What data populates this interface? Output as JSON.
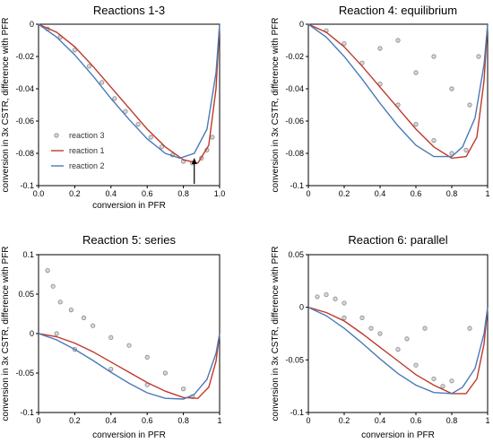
{
  "chart_data": [
    {
      "type": "scatter",
      "title": "Reactions 1-3",
      "xlabel": "conversion in PFR",
      "ylabel": "conversion in 3x CSTR, difference with PFR",
      "xlim": [
        0,
        1
      ],
      "ylim": [
        -0.1,
        0
      ],
      "xticks": [
        "0.0",
        "0.2",
        "0.4",
        "0.6",
        "0.8",
        "1.0"
      ],
      "yticks": [
        "0",
        "-0.02",
        "-0.04",
        "-0.06",
        "-0.08",
        "-0.1"
      ],
      "legend": {
        "position": "lower-left",
        "entries": [
          "reaction 3",
          "reaction 1",
          "reaction 2"
        ]
      },
      "annotation": "arrow pointing to x = 0.86",
      "series": [
        {
          "name": "reaction 3",
          "kind": "points",
          "color": "#888888",
          "points": [
            [
              0.05,
              -0.003
            ],
            [
              0.12,
              -0.008
            ],
            [
              0.2,
              -0.016
            ],
            [
              0.28,
              -0.026
            ],
            [
              0.35,
              -0.036
            ],
            [
              0.42,
              -0.046
            ],
            [
              0.48,
              -0.054
            ],
            [
              0.55,
              -0.062
            ],
            [
              0.62,
              -0.07
            ],
            [
              0.68,
              -0.076
            ],
            [
              0.74,
              -0.081
            ],
            [
              0.8,
              -0.085
            ],
            [
              0.85,
              -0.086
            ],
            [
              0.9,
              -0.083
            ],
            [
              0.93,
              -0.078
            ],
            [
              0.96,
              -0.07
            ]
          ]
        },
        {
          "name": "reaction 1",
          "kind": "line",
          "color": "#c0392b",
          "x": [
            0,
            0.1,
            0.2,
            0.3,
            0.4,
            0.5,
            0.6,
            0.7,
            0.8,
            0.88,
            0.94,
            0.98,
            1.0
          ],
          "y": [
            0,
            -0.005,
            -0.014,
            -0.026,
            -0.039,
            -0.052,
            -0.065,
            -0.076,
            -0.084,
            -0.086,
            -0.075,
            -0.04,
            0
          ]
        },
        {
          "name": "reaction 2",
          "kind": "line",
          "color": "#4a7ab8",
          "x": [
            0,
            0.1,
            0.2,
            0.3,
            0.4,
            0.5,
            0.6,
            0.7,
            0.78,
            0.86,
            0.93,
            0.98,
            1.0
          ],
          "y": [
            0,
            -0.008,
            -0.019,
            -0.032,
            -0.046,
            -0.059,
            -0.071,
            -0.08,
            -0.083,
            -0.08,
            -0.065,
            -0.03,
            0
          ]
        }
      ]
    },
    {
      "type": "scatter",
      "title": "Reaction 4: equilibrium",
      "xlabel": "",
      "ylabel": "conversion in 3x CSTR, difference with PFR",
      "xlim": [
        0,
        1
      ],
      "ylim": [
        -0.1,
        0
      ],
      "xticks": [
        "0",
        "0.2",
        "0.4",
        "0.6",
        "0.8",
        "1"
      ],
      "yticks": [
        "0",
        "-0.02",
        "-0.04",
        "-0.06",
        "-0.08",
        "-0.1"
      ],
      "series": [
        {
          "name": "",
          "kind": "points",
          "color": "#888888",
          "points": [
            [
              0.1,
              -0.004
            ],
            [
              0.2,
              -0.012
            ],
            [
              0.3,
              -0.024
            ],
            [
              0.4,
              -0.037
            ],
            [
              0.5,
              -0.05
            ],
            [
              0.6,
              -0.062
            ],
            [
              0.7,
              -0.072
            ],
            [
              0.8,
              -0.08
            ],
            [
              0.88,
              -0.078
            ],
            [
              0.5,
              -0.01
            ],
            [
              0.7,
              -0.02
            ],
            [
              0.8,
              -0.04
            ],
            [
              0.9,
              -0.05
            ],
            [
              0.6,
              -0.03
            ],
            [
              0.4,
              -0.015
            ],
            [
              0.95,
              -0.02
            ]
          ]
        },
        {
          "name": "",
          "kind": "line",
          "color": "#c0392b",
          "x": [
            0,
            0.1,
            0.2,
            0.3,
            0.4,
            0.5,
            0.6,
            0.7,
            0.8,
            0.88,
            0.94,
            0.98,
            1.0
          ],
          "y": [
            0,
            -0.005,
            -0.014,
            -0.026,
            -0.039,
            -0.052,
            -0.065,
            -0.076,
            -0.083,
            -0.082,
            -0.07,
            -0.035,
            0
          ]
        },
        {
          "name": "",
          "kind": "line",
          "color": "#4a7ab8",
          "x": [
            0,
            0.1,
            0.2,
            0.3,
            0.4,
            0.5,
            0.6,
            0.7,
            0.8,
            0.86,
            0.93,
            0.98,
            1.0
          ],
          "y": [
            0,
            -0.008,
            -0.02,
            -0.034,
            -0.049,
            -0.063,
            -0.075,
            -0.082,
            -0.082,
            -0.076,
            -0.058,
            -0.025,
            0
          ]
        }
      ]
    },
    {
      "type": "scatter",
      "title": "Reaction 5: series",
      "xlabel": "conversion in PFR",
      "ylabel": "conversion in 3x CSTR, difference with PFR",
      "xlim": [
        0,
        1
      ],
      "ylim": [
        -0.1,
        0.1
      ],
      "xticks": [
        "0",
        "0.2",
        "0.4",
        "0.6",
        "0.8",
        "1"
      ],
      "yticks": [
        "0.1",
        "0.05",
        "0",
        "-0.05",
        "-0.1"
      ],
      "series": [
        {
          "name": "",
          "kind": "points",
          "color": "#888888",
          "points": [
            [
              0.05,
              0.08
            ],
            [
              0.08,
              0.06
            ],
            [
              0.12,
              0.04
            ],
            [
              0.18,
              0.03
            ],
            [
              0.25,
              0.02
            ],
            [
              0.3,
              0.01
            ],
            [
              0.4,
              -0.005
            ],
            [
              0.5,
              -0.015
            ],
            [
              0.6,
              -0.03
            ],
            [
              0.7,
              -0.05
            ],
            [
              0.8,
              -0.07
            ],
            [
              0.85,
              -0.08
            ],
            [
              0.2,
              -0.02
            ],
            [
              0.4,
              -0.045
            ],
            [
              0.6,
              -0.065
            ],
            [
              0.1,
              0.0
            ]
          ]
        },
        {
          "name": "",
          "kind": "line",
          "color": "#c0392b",
          "x": [
            0,
            0.1,
            0.2,
            0.3,
            0.4,
            0.5,
            0.6,
            0.7,
            0.8,
            0.88,
            0.94,
            0.98,
            1.0
          ],
          "y": [
            0,
            -0.004,
            -0.012,
            -0.023,
            -0.036,
            -0.049,
            -0.062,
            -0.073,
            -0.081,
            -0.082,
            -0.068,
            -0.035,
            0
          ]
        },
        {
          "name": "",
          "kind": "line",
          "color": "#4a7ab8",
          "x": [
            0,
            0.1,
            0.2,
            0.3,
            0.4,
            0.5,
            0.6,
            0.7,
            0.8,
            0.86,
            0.93,
            0.98,
            1.0
          ],
          "y": [
            0,
            -0.008,
            -0.02,
            -0.034,
            -0.049,
            -0.063,
            -0.075,
            -0.082,
            -0.083,
            -0.077,
            -0.058,
            -0.025,
            0
          ]
        }
      ]
    },
    {
      "type": "scatter",
      "title": "Reaction 6: parallel",
      "xlabel": "conversion in PFR",
      "ylabel": "conversion in 3x CSTR, difference with PFR",
      "xlim": [
        0,
        1
      ],
      "ylim": [
        -0.1,
        0.05
      ],
      "xticks": [
        "0",
        "0.2",
        "0.4",
        "0.6",
        "0.8",
        "1"
      ],
      "yticks": [
        "0.05",
        "0",
        "-0.05",
        "-0.1"
      ],
      "series": [
        {
          "name": "",
          "kind": "points",
          "color": "#888888",
          "points": [
            [
              0.05,
              0.01
            ],
            [
              0.1,
              0.012
            ],
            [
              0.15,
              0.008
            ],
            [
              0.2,
              0.004
            ],
            [
              0.3,
              -0.01
            ],
            [
              0.4,
              -0.025
            ],
            [
              0.5,
              -0.04
            ],
            [
              0.6,
              -0.055
            ],
            [
              0.7,
              -0.068
            ],
            [
              0.75,
              -0.075
            ],
            [
              0.8,
              -0.07
            ],
            [
              0.2,
              -0.01
            ],
            [
              0.35,
              -0.02
            ],
            [
              0.55,
              -0.03
            ],
            [
              0.65,
              -0.02
            ],
            [
              0.9,
              -0.02
            ]
          ]
        },
        {
          "name": "",
          "kind": "line",
          "color": "#c0392b",
          "x": [
            0,
            0.1,
            0.2,
            0.3,
            0.4,
            0.5,
            0.6,
            0.7,
            0.8,
            0.88,
            0.94,
            0.98,
            1.0
          ],
          "y": [
            0,
            -0.005,
            -0.013,
            -0.025,
            -0.038,
            -0.051,
            -0.064,
            -0.074,
            -0.082,
            -0.082,
            -0.068,
            -0.035,
            0
          ]
        },
        {
          "name": "",
          "kind": "line",
          "color": "#4a7ab8",
          "x": [
            0,
            0.1,
            0.2,
            0.3,
            0.4,
            0.5,
            0.6,
            0.7,
            0.8,
            0.86,
            0.93,
            0.98,
            1.0
          ],
          "y": [
            0,
            -0.008,
            -0.02,
            -0.034,
            -0.049,
            -0.063,
            -0.074,
            -0.081,
            -0.082,
            -0.076,
            -0.058,
            -0.025,
            0
          ]
        }
      ]
    }
  ]
}
